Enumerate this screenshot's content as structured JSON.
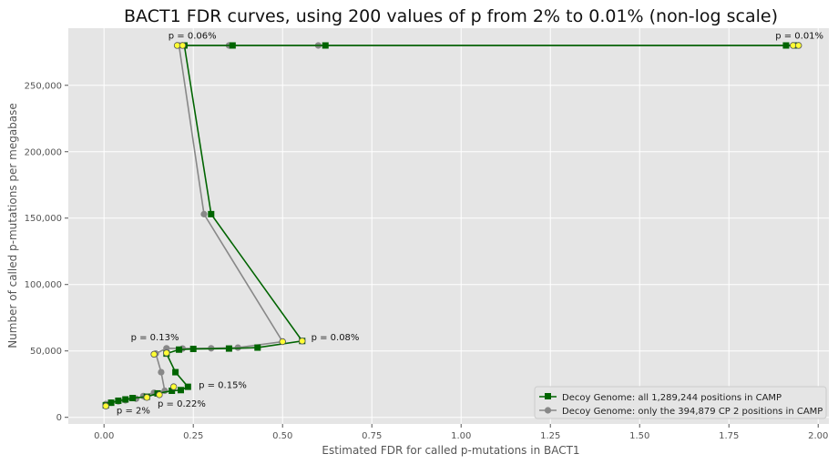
{
  "chart_data": {
    "type": "line",
    "title": "BACT1 FDR curves, using 200 values of p from 2% to 0.01% (non-log scale)",
    "xlabel": "Estimated FDR for called p-mutations in BACT1",
    "ylabel": "Number of called p-mutations per megabase",
    "xlim": [
      -0.1,
      2.03
    ],
    "ylim": [
      -5000,
      293000
    ],
    "x_ticks": [
      0.0,
      0.25,
      0.5,
      0.75,
      1.0,
      1.25,
      1.5,
      1.75,
      2.0
    ],
    "x_tick_labels": [
      "0.00",
      "0.25",
      "0.50",
      "0.75",
      "1.00",
      "1.25",
      "1.50",
      "1.75",
      "2.00"
    ],
    "y_ticks": [
      0,
      50000,
      100000,
      150000,
      200000,
      250000
    ],
    "y_tick_labels": [
      "0",
      "50,000",
      "100,000",
      "150,000",
      "200,000",
      "250,000"
    ],
    "grid": true,
    "legend_position": "bottom-right",
    "colors": {
      "background": "#e5e5e5",
      "grid": "#ffffff",
      "series_a": "#006400",
      "series_b": "#888888",
      "highlight": "#ffff33"
    },
    "series": [
      {
        "name": "Decoy Genome: all 1,289,244 positions in CAMP",
        "marker": "square",
        "points": [
          [
            0.005,
            9000
          ],
          [
            0.02,
            11000
          ],
          [
            0.04,
            12500
          ],
          [
            0.06,
            13500
          ],
          [
            0.08,
            14500
          ],
          [
            0.12,
            15500
          ],
          [
            0.15,
            18000
          ],
          [
            0.19,
            20000
          ],
          [
            0.215,
            20500
          ],
          [
            0.235,
            23000
          ],
          [
            0.2,
            34000
          ],
          [
            0.175,
            48000
          ],
          [
            0.21,
            51000
          ],
          [
            0.25,
            51500
          ],
          [
            0.35,
            51800
          ],
          [
            0.43,
            52500
          ],
          [
            0.555,
            57500
          ],
          [
            0.3,
            153000
          ],
          [
            0.225,
            280000
          ],
          [
            0.36,
            280000
          ],
          [
            0.62,
            280000
          ],
          [
            1.91,
            280000
          ],
          [
            1.94,
            280000
          ]
        ]
      },
      {
        "name": "Decoy Genome: only the 394,879 CP 2 positions in CAMP",
        "marker": "circle",
        "points": [
          [
            0.005,
            10000
          ],
          [
            0.02,
            11000
          ],
          [
            0.04,
            12000
          ],
          [
            0.06,
            12800
          ],
          [
            0.09,
            14000
          ],
          [
            0.11,
            16000
          ],
          [
            0.14,
            18500
          ],
          [
            0.17,
            20000
          ],
          [
            0.16,
            34000
          ],
          [
            0.145,
            48000
          ],
          [
            0.175,
            52000
          ],
          [
            0.22,
            51800
          ],
          [
            0.3,
            52000
          ],
          [
            0.375,
            52500
          ],
          [
            0.5,
            57000
          ],
          [
            0.28,
            153000
          ],
          [
            0.21,
            280000
          ],
          [
            0.35,
            280000
          ],
          [
            0.6,
            280000
          ],
          [
            1.93,
            280000
          ],
          [
            1.945,
            280000
          ]
        ]
      }
    ],
    "highlighted_points": [
      [
        0.005,
        8500
      ],
      [
        0.12,
        15000
      ],
      [
        0.155,
        17000
      ],
      [
        0.195,
        23000
      ],
      [
        0.14,
        47500
      ],
      [
        0.175,
        48500
      ],
      [
        0.555,
        57500
      ],
      [
        0.5,
        57000
      ],
      [
        0.205,
        280000
      ],
      [
        0.22,
        280000
      ],
      [
        1.93,
        280000
      ],
      [
        1.945,
        280000
      ]
    ],
    "annotations": [
      {
        "text": "p = 2%",
        "x": 0.035,
        "y": 3000
      },
      {
        "text": "p = 0.22%",
        "x": 0.15,
        "y": 8000
      },
      {
        "text": "p = 0.15%",
        "x": 0.265,
        "y": 22000
      },
      {
        "text": "p = 0.13%",
        "x": 0.075,
        "y": 58000
      },
      {
        "text": "p = 0.08%",
        "x": 0.58,
        "y": 58000
      },
      {
        "text": "p = 0.06%",
        "x": 0.18,
        "y": 285000
      },
      {
        "text": "p = 0.01%",
        "x": 1.88,
        "y": 285000
      }
    ]
  }
}
